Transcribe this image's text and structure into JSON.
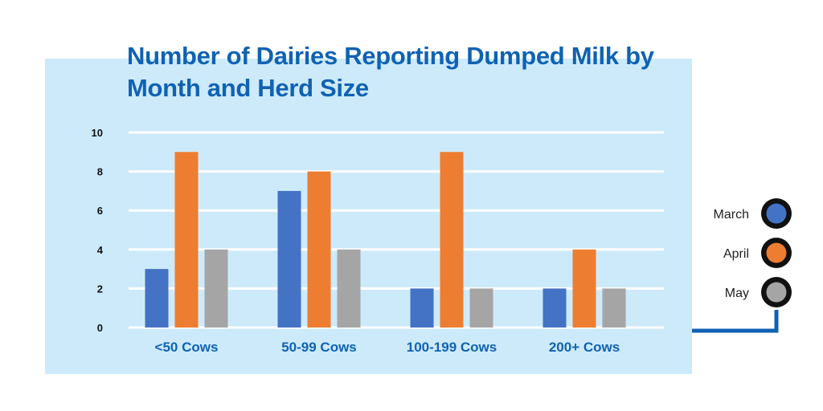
{
  "chart_data": {
    "type": "bar",
    "title": "Number of Dairies Reporting Dumped Milk by Month and Herd Size",
    "categories": [
      "<50 Cows",
      "50-99 Cows",
      "100-199 Cows",
      "200+ Cows"
    ],
    "series": [
      {
        "name": "March",
        "color": "#4472c4",
        "values": [
          3,
          7,
          2,
          2
        ]
      },
      {
        "name": "April",
        "color": "#ed7d31",
        "values": [
          9,
          8,
          9,
          4
        ]
      },
      {
        "name": "May",
        "color": "#a5a5a5",
        "values": [
          4,
          4,
          2,
          2
        ]
      }
    ],
    "yticks": [
      "0",
      "2",
      "4",
      "6",
      "8",
      "10"
    ],
    "ylim": [
      0,
      10
    ],
    "grid": true,
    "legend_position": "right"
  }
}
